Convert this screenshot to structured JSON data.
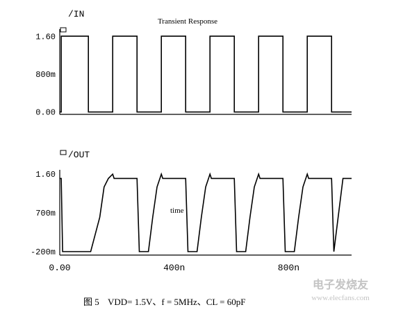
{
  "chart_data": [
    {
      "type": "line",
      "title": "Transient Response",
      "series": [
        {
          "name": "/IN",
          "x": [
            0,
            5,
            5,
            100,
            100,
            185,
            185,
            270,
            270,
            355,
            355,
            440,
            440,
            525,
            525,
            610,
            610,
            695,
            695,
            780,
            780,
            865,
            865,
            950,
            950,
            1020
          ],
          "values": [
            0,
            0,
            1.6,
            1.6,
            0,
            0,
            1.6,
            1.6,
            0,
            0,
            1.6,
            1.6,
            0,
            0,
            1.6,
            1.6,
            0,
            0,
            1.6,
            1.6,
            0,
            0,
            1.6,
            1.6,
            0,
            0
          ]
        }
      ],
      "ylim": [
        -0.05,
        1.75
      ],
      "yticks": [
        "1.60",
        "800m",
        "0.00"
      ]
    },
    {
      "type": "line",
      "series": [
        {
          "name": "/OUT",
          "x": [
            0,
            5,
            10,
            100,
            108,
            140,
            155,
            170,
            185,
            190,
            270,
            278,
            310,
            325,
            340,
            355,
            360,
            440,
            448,
            480,
            495,
            510,
            525,
            530,
            610,
            618,
            650,
            665,
            680,
            695,
            700,
            780,
            788,
            820,
            835,
            850,
            865,
            870,
            950,
            958,
            990,
            1020
          ],
          "values": [
            1.5,
            1.5,
            -0.2,
            -0.2,
            -0.2,
            0.6,
            1.3,
            1.5,
            1.6,
            1.5,
            1.5,
            -0.2,
            -0.2,
            0.6,
            1.3,
            1.6,
            1.5,
            1.5,
            -0.2,
            -0.2,
            0.6,
            1.3,
            1.6,
            1.5,
            1.5,
            -0.2,
            -0.2,
            0.6,
            1.3,
            1.6,
            1.5,
            1.5,
            -0.2,
            -0.2,
            0.6,
            1.3,
            1.6,
            1.5,
            1.5,
            -0.2,
            1.5,
            1.5
          ]
        }
      ],
      "ylim": [
        -0.28,
        1.7
      ],
      "yticks": [
        "1.60",
        "700m",
        "-200m"
      ],
      "xticks": [
        "0.00",
        "400n",
        "800n"
      ],
      "xlabel": "time"
    }
  ],
  "caption": {
    "prefix": "图 5",
    "formula": "VDD= 1.5V、f = 5MHz、CL = 60pF"
  },
  "watermark": {
    "brand": "电子发烧友",
    "url": "www.elecfans.com"
  },
  "colors": {
    "trace": "#000000",
    "axis": "#000000",
    "watermark": "#c8c8c8"
  }
}
